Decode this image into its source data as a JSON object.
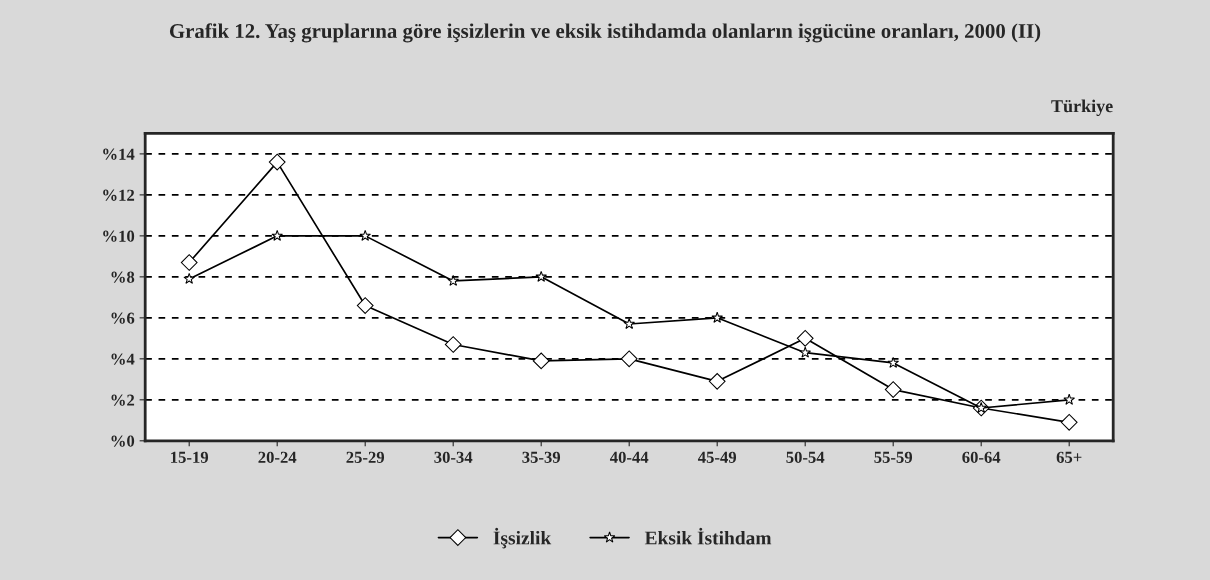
{
  "chart_data": {
    "type": "line",
    "title": "Grafik 12. Yaş gruplarına göre işsizlerin ve eksik istihdamda olanların işgücüne oranları, 2000 (II)",
    "annotations": [
      "Türkiye"
    ],
    "categories": [
      "15-19",
      "20-24",
      "25-29",
      "30-34",
      "35-39",
      "40-44",
      "45-49",
      "50-54",
      "55-59",
      "60-64",
      "65+"
    ],
    "series": [
      {
        "name": "İşsizlik",
        "color": "#000000",
        "marker": "diamond",
        "values": [
          8.7,
          13.6,
          6.6,
          4.7,
          3.9,
          4.0,
          2.9,
          5.0,
          2.5,
          1.6,
          0.9
        ]
      },
      {
        "name": "Eksik İstihdam",
        "color": "#000000",
        "marker": "star",
        "values": [
          7.9,
          10.0,
          10.0,
          7.8,
          8.0,
          5.7,
          6.0,
          4.3,
          3.8,
          1.6,
          2.0
        ]
      }
    ],
    "ylim": [
      0,
      15
    ],
    "yticks": [
      {
        "value": 0,
        "label": "%0"
      },
      {
        "value": 2,
        "label": "%2"
      },
      {
        "value": 4,
        "label": "%4"
      },
      {
        "value": 6,
        "label": "%6"
      },
      {
        "value": 8,
        "label": "%8"
      },
      {
        "value": 10,
        "label": "%10"
      },
      {
        "value": 12,
        "label": "%12"
      },
      {
        "value": 14,
        "label": "%14"
      }
    ],
    "grid": "y",
    "legend": "bottom",
    "line_style": "solid"
  }
}
